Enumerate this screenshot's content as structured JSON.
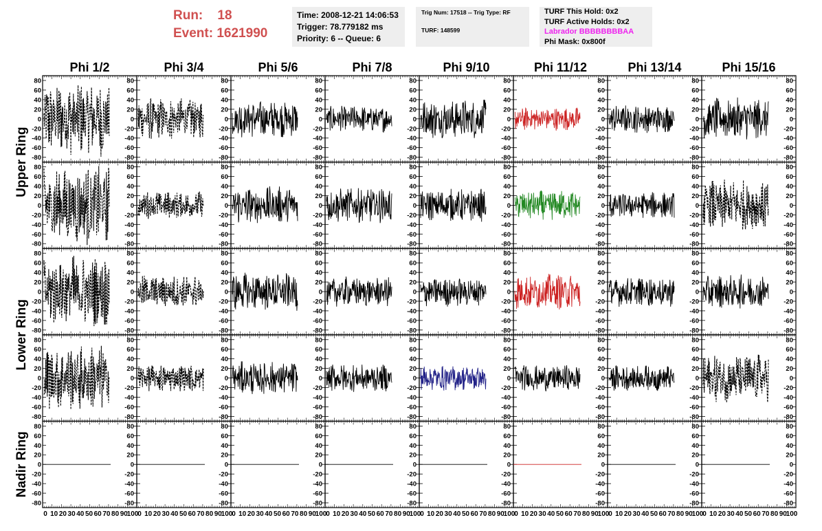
{
  "header": {
    "run_label": "Run:",
    "run_value": "18",
    "event_label": "Event:",
    "event_value": "1621990",
    "time": "Time: 2008-12-21 14:06:53",
    "trigger": "Trigger: 78.779182 ms",
    "priority": "Priority: 6 -- Queue: 6",
    "trig_num": "Trig Num: 17518 -- Trig Type: RF",
    "turf": "TURF: 148599",
    "turf_this_hold": "TURF This Hold: 0x2",
    "turf_active_holds": "TURF Active Holds: 0x2",
    "labrador": "Labrador BBBBBBBBAA",
    "phi_mask": "Phi Mask: 0x800f",
    "labrador_color": "#ee22ee"
  },
  "columns": [
    "Phi 1/2",
    "Phi 3/4",
    "Phi 5/6",
    "Phi 7/8",
    "Phi 9/10",
    "Phi 11/12",
    "Phi 13/14",
    "Phi 15/16"
  ],
  "ring_labels": [
    "Upper Ring",
    "Lower Ring",
    "Nadir Ring"
  ],
  "y_ticks": [
    "80",
    "60",
    "40",
    "20",
    "0",
    "-20",
    "-40",
    "-60",
    "-80"
  ],
  "x_ticks": [
    "0",
    "10",
    "20",
    "30",
    "40",
    "50",
    "60",
    "70",
    "80",
    "90",
    "100"
  ],
  "y_range": [
    -90,
    90
  ],
  "x_range": [
    0,
    100
  ],
  "chart_data": {
    "type": "line",
    "rows": 5,
    "cols": 8,
    "series_amplitude": [
      [
        80,
        45,
        40,
        28,
        42,
        25,
        30,
        45
      ],
      [
        85,
        30,
        40,
        38,
        35,
        32,
        28,
        55
      ],
      [
        78,
        35,
        40,
        32,
        32,
        38,
        32,
        36
      ],
      [
        70,
        30,
        35,
        30,
        28,
        28,
        28,
        52
      ],
      [
        0,
        0,
        0,
        0,
        0,
        0,
        0,
        0
      ]
    ],
    "series_style": [
      [
        "dashed",
        "dashed",
        "solid",
        "solid",
        "solid",
        "solid",
        "solid",
        "solid"
      ],
      [
        "dashed",
        "dashed",
        "solid",
        "solid",
        "solid",
        "solid",
        "solid",
        "dashed"
      ],
      [
        "dashed",
        "dashed",
        "solid",
        "solid",
        "solid",
        "solid",
        "solid",
        "solid"
      ],
      [
        "dashed",
        "dashed",
        "solid",
        "solid",
        "solid",
        "solid",
        "solid",
        "dashed"
      ],
      [
        "solid",
        "solid",
        "solid",
        "solid",
        "solid",
        "solid",
        "solid",
        "solid"
      ]
    ],
    "series_color": [
      [
        "#000000",
        "#000000",
        "#000000",
        "#000000",
        "#000000",
        "#cc2222",
        "#000000",
        "#000000"
      ],
      [
        "#000000",
        "#000000",
        "#000000",
        "#000000",
        "#000000",
        "#228822",
        "#000000",
        "#000000"
      ],
      [
        "#000000",
        "#000000",
        "#000000",
        "#000000",
        "#000000",
        "#cc2222",
        "#000000",
        "#000000"
      ],
      [
        "#000000",
        "#000000",
        "#000000",
        "#000000",
        "#222288",
        "#000000",
        "#000000",
        "#000000"
      ],
      [
        "#000000",
        "#000000",
        "#000000",
        "#000000",
        "#000000",
        "#cc2222",
        "#000000",
        "#000000"
      ]
    ]
  }
}
